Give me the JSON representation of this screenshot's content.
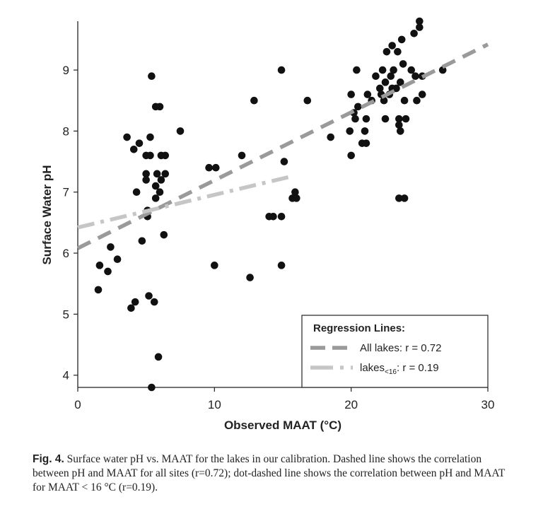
{
  "chart_data": {
    "type": "scatter",
    "xlabel": "Observed MAAT (°C)",
    "ylabel": "Surface Water pH",
    "xlim": [
      0,
      30
    ],
    "ylim": [
      3.8,
      9.8
    ],
    "xticks": [
      "0",
      "10",
      "20",
      "30"
    ],
    "yticks": [
      "4",
      "5",
      "6",
      "7",
      "8",
      "9"
    ],
    "grid": false,
    "points": [
      [
        1.5,
        5.4
      ],
      [
        1.6,
        5.8
      ],
      [
        2.2,
        5.7
      ],
      [
        2.4,
        6.1
      ],
      [
        2.9,
        5.9
      ],
      [
        3.6,
        7.9
      ],
      [
        3.9,
        5.1
      ],
      [
        4.1,
        7.7
      ],
      [
        4.2,
        5.2
      ],
      [
        4.3,
        7.0
      ],
      [
        4.5,
        7.8
      ],
      [
        4.7,
        6.2
      ],
      [
        5.0,
        7.6
      ],
      [
        5.0,
        7.3
      ],
      [
        5.0,
        7.2
      ],
      [
        5.1,
        6.7
      ],
      [
        5.1,
        6.6
      ],
      [
        5.2,
        5.3
      ],
      [
        5.3,
        7.9
      ],
      [
        5.3,
        7.6
      ],
      [
        5.4,
        8.9
      ],
      [
        5.4,
        3.8
      ],
      [
        5.6,
        5.2
      ],
      [
        5.7,
        8.4
      ],
      [
        5.7,
        7.1
      ],
      [
        5.7,
        6.9
      ],
      [
        5.8,
        7.3
      ],
      [
        5.9,
        4.3
      ],
      [
        6.0,
        8.4
      ],
      [
        6.0,
        7.0
      ],
      [
        6.1,
        7.6
      ],
      [
        6.1,
        7.2
      ],
      [
        6.3,
        6.3
      ],
      [
        6.4,
        7.3
      ],
      [
        6.4,
        7.6
      ],
      [
        7.5,
        8.0
      ],
      [
        9.6,
        7.4
      ],
      [
        10.0,
        5.8
      ],
      [
        10.1,
        7.4
      ],
      [
        12.0,
        7.6
      ],
      [
        12.6,
        5.6
      ],
      [
        12.9,
        8.5
      ],
      [
        14.0,
        6.6
      ],
      [
        14.3,
        6.6
      ],
      [
        14.9,
        6.6
      ],
      [
        14.9,
        9.0
      ],
      [
        14.9,
        5.8
      ],
      [
        15.1,
        7.5
      ],
      [
        15.7,
        6.9
      ],
      [
        15.9,
        7.0
      ],
      [
        16.0,
        6.9
      ],
      [
        16.8,
        8.5
      ],
      [
        18.5,
        7.9
      ],
      [
        19.9,
        8.0
      ],
      [
        20.0,
        7.6
      ],
      [
        20.0,
        8.6
      ],
      [
        20.2,
        8.3
      ],
      [
        20.3,
        8.2
      ],
      [
        20.4,
        9.0
      ],
      [
        20.5,
        8.4
      ],
      [
        20.8,
        7.8
      ],
      [
        21.0,
        8.0
      ],
      [
        21.1,
        7.8
      ],
      [
        21.1,
        8.2
      ],
      [
        21.2,
        8.6
      ],
      [
        21.5,
        8.5
      ],
      [
        21.8,
        8.9
      ],
      [
        22.1,
        8.7
      ],
      [
        22.2,
        8.6
      ],
      [
        22.3,
        9.0
      ],
      [
        22.4,
        8.5
      ],
      [
        22.5,
        8.2
      ],
      [
        22.5,
        8.8
      ],
      [
        22.6,
        9.3
      ],
      [
        22.8,
        8.6
      ],
      [
        22.9,
        8.9
      ],
      [
        23.0,
        8.7
      ],
      [
        23.0,
        9.4
      ],
      [
        23.1,
        9.0
      ],
      [
        23.3,
        8.7
      ],
      [
        23.4,
        9.3
      ],
      [
        23.5,
        8.2
      ],
      [
        23.5,
        8.1
      ],
      [
        23.5,
        6.9
      ],
      [
        23.6,
        8.0
      ],
      [
        23.6,
        8.8
      ],
      [
        23.7,
        9.5
      ],
      [
        23.8,
        9.1
      ],
      [
        23.9,
        6.9
      ],
      [
        23.9,
        8.5
      ],
      [
        24.0,
        8.2
      ],
      [
        24.4,
        9.0
      ],
      [
        24.6,
        9.6
      ],
      [
        24.7,
        8.9
      ],
      [
        24.8,
        8.5
      ],
      [
        25.0,
        9.7
      ],
      [
        25.0,
        9.8
      ],
      [
        25.2,
        8.6
      ],
      [
        25.2,
        8.9
      ],
      [
        26.7,
        9.0
      ]
    ],
    "regression_lines": [
      {
        "name": "All lakes: r = 0.72",
        "x": [
          0,
          30
        ],
        "y": [
          6.08,
          9.42
        ],
        "style": "dashed",
        "color": "#9a9a9a"
      },
      {
        "name": "lakes<16: r = 0.19",
        "x": [
          0,
          15.5
        ],
        "y": [
          6.42,
          7.25
        ],
        "style": "dot-dashed",
        "color": "#c6c6c6"
      }
    ],
    "legend": {
      "title": "Regression Lines:",
      "position": "lower-right",
      "entries": [
        {
          "label_prefix": "All lakes: r = 0.72",
          "label_sub": "",
          "label_suffix": "",
          "style": "dashed",
          "color": "#9a9a9a"
        },
        {
          "label_prefix": "lakes",
          "label_sub": "<16",
          "label_suffix": ": r = 0.19",
          "style": "dot-dashed",
          "color": "#c6c6c6"
        }
      ]
    },
    "marker_color": "#111111"
  },
  "caption": {
    "label": "Fig. 4.",
    "text": "Surface water pH vs. MAAT for the lakes in our calibration. Dashed line shows the correlation between pH and MAAT for all sites (r=0.72); dot-dashed line shows the correlation between pH and MAAT for MAAT < 16 °C (r=0.19)."
  }
}
